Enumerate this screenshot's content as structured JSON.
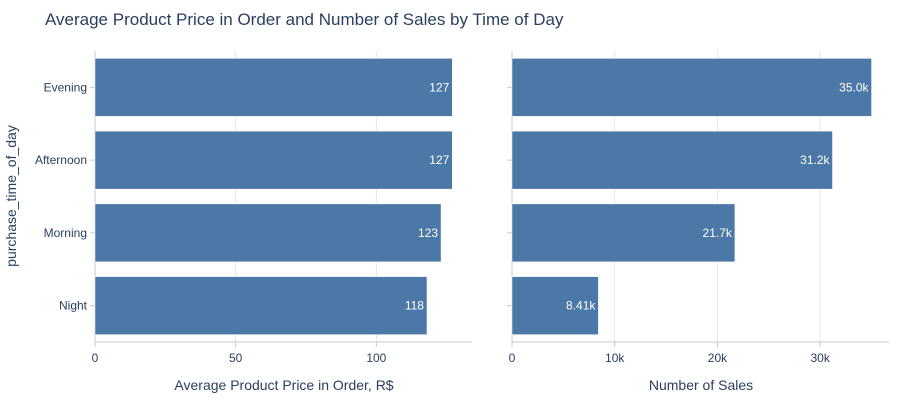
{
  "title": "Average Product Price in Order and Number of Sales by Time of Day",
  "colors": {
    "bar": "#4c78a8",
    "bar_edge": "#ffffff",
    "text": "#2a3f5f",
    "grid": "#e6e6e6"
  },
  "chart_data": [
    {
      "type": "bar",
      "orientation": "horizontal",
      "categories": [
        "Evening",
        "Afternoon",
        "Morning",
        "Night"
      ],
      "values": [
        127,
        127,
        123,
        118
      ],
      "labels": [
        "127",
        "127",
        "123",
        "118"
      ],
      "xlabel": "Average Product Price in Order, R$",
      "ylabel": "purchase_time_of_day",
      "xlim": [
        0,
        134
      ],
      "xticks": [
        0,
        50,
        100
      ],
      "xtick_labels": [
        "0",
        "50",
        "100"
      ],
      "grid": true
    },
    {
      "type": "bar",
      "orientation": "horizontal",
      "categories": [
        "Evening",
        "Afternoon",
        "Morning",
        "Night"
      ],
      "values": [
        35000,
        31200,
        21700,
        8410
      ],
      "labels": [
        "35.0k",
        "31.2k",
        "21.7k",
        "8.41k"
      ],
      "xlabel": "Number of Sales",
      "ylabel": "",
      "xlim": [
        0,
        36700
      ],
      "xticks": [
        0,
        10000,
        20000,
        30000
      ],
      "xtick_labels": [
        "0",
        "10k",
        "20k",
        "30k"
      ],
      "grid": true
    }
  ]
}
